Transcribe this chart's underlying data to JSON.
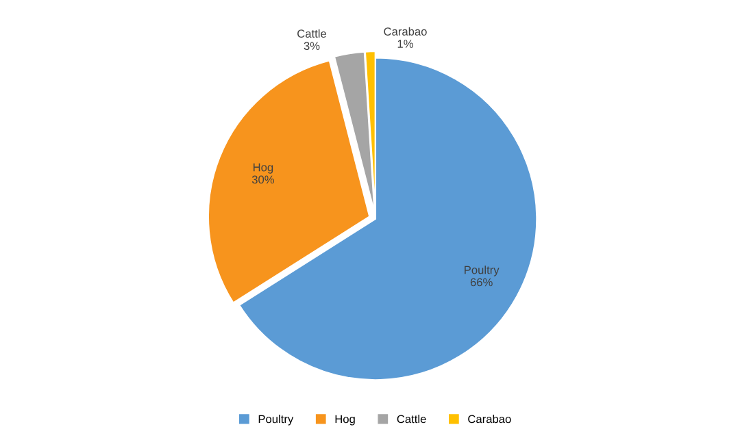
{
  "chart_data": {
    "type": "pie",
    "categories": [
      "Poultry",
      "Hog",
      "Cattle",
      "Carabao"
    ],
    "values": [
      66,
      30,
      3,
      1
    ],
    "colors": [
      "#5b9bd5",
      "#f7941d",
      "#a5a5a5",
      "#ffc000"
    ],
    "value_labels": [
      "66%",
      "30%",
      "3%",
      "1%"
    ],
    "legend": "bottom"
  }
}
